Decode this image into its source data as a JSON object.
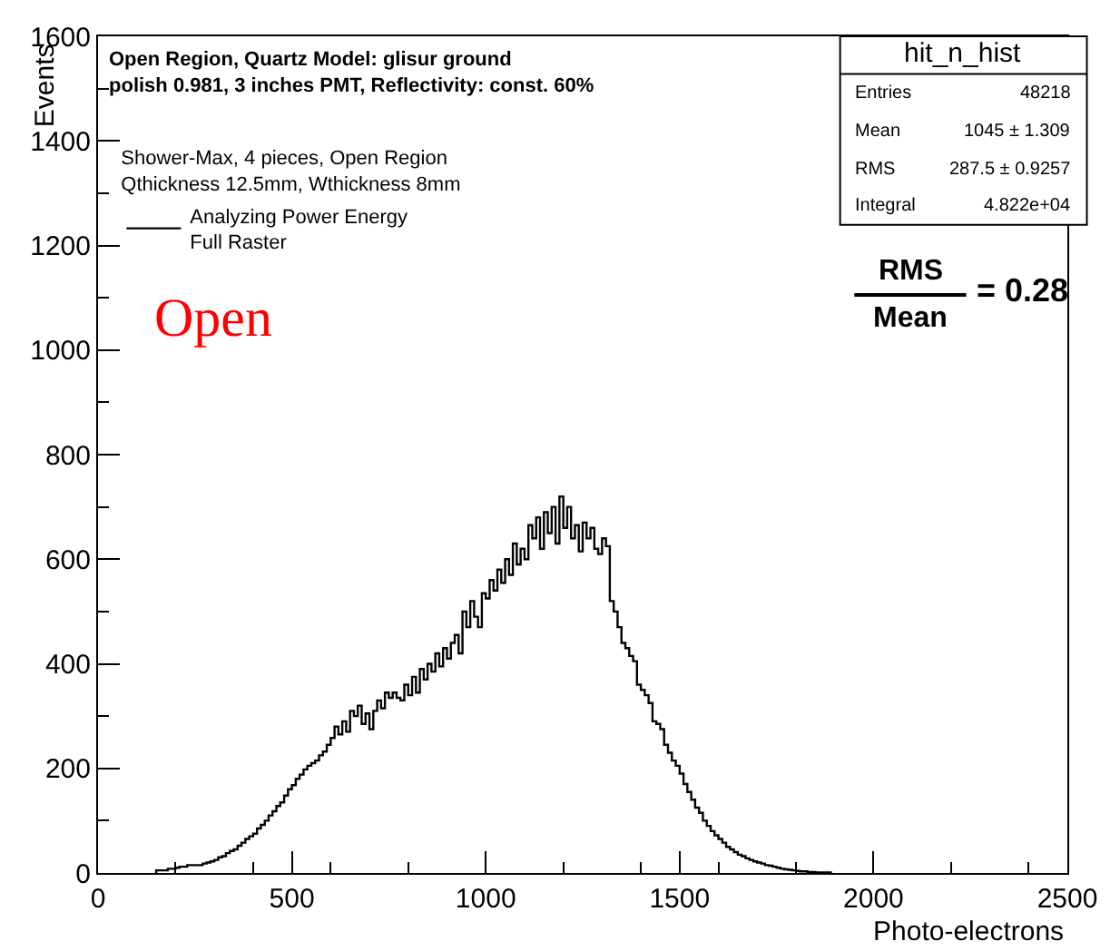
{
  "chart_data": {
    "type": "histogram",
    "title": "Open Region, Quartz Model: glisur ground\npolish 0.981, 3 inches PMT, Reflectivity: const. 60%",
    "legend_title": "Shower-Max, 4 pieces, Open Region\nQthickness 12.5mm, Wthickness 8mm",
    "xlabel": "Photo-electrons",
    "ylabel": "Events",
    "bins": [
      150,
      160,
      170,
      180,
      190,
      200,
      210,
      220,
      230,
      240,
      250,
      260,
      270,
      280,
      290,
      300,
      310,
      320,
      330,
      340,
      350,
      360,
      370,
      380,
      390,
      400,
      410,
      420,
      430,
      440,
      450,
      460,
      470,
      480,
      490,
      500,
      510,
      520,
      530,
      540,
      550,
      560,
      570,
      580,
      590,
      600,
      610,
      620,
      630,
      640,
      650,
      660,
      670,
      680,
      690,
      700,
      710,
      720,
      730,
      740,
      750,
      760,
      770,
      780,
      790,
      800,
      810,
      820,
      830,
      840,
      850,
      860,
      870,
      880,
      890,
      900,
      910,
      920,
      930,
      940,
      950,
      960,
      970,
      980,
      990,
      1000,
      1010,
      1020,
      1030,
      1040,
      1050,
      1060,
      1070,
      1080,
      1090,
      1100,
      1110,
      1120,
      1130,
      1140,
      1150,
      1160,
      1170,
      1180,
      1190,
      1200,
      1210,
      1220,
      1230,
      1240,
      1250,
      1260,
      1270,
      1280,
      1290,
      1300,
      1310,
      1320,
      1330,
      1340,
      1350,
      1360,
      1370,
      1380,
      1390,
      1400,
      1410,
      1420,
      1430,
      1440,
      1450,
      1460,
      1470,
      1480,
      1490,
      1500,
      1510,
      1520,
      1530,
      1540,
      1550,
      1560,
      1570,
      1580,
      1590,
      1600,
      1610,
      1620,
      1630,
      1640,
      1650,
      1660,
      1670,
      1680,
      1690,
      1700,
      1710,
      1720,
      1730,
      1740,
      1750,
      1760,
      1770,
      1780,
      1790,
      1800,
      1810,
      1820,
      1830,
      1840,
      1850,
      1860,
      1870,
      1880,
      1890
    ],
    "series": [
      {
        "name": "Analyzing Power Energy\nFull Raster",
        "color": "#000000",
        "values": [
          5,
          5,
          5,
          8,
          8,
          10,
          12,
          12,
          15,
          15,
          15,
          15,
          18,
          20,
          22,
          25,
          30,
          32,
          38,
          42,
          45,
          52,
          58,
          65,
          70,
          75,
          85,
          92,
          100,
          110,
          118,
          128,
          135,
          148,
          160,
          168,
          180,
          188,
          198,
          205,
          210,
          215,
          225,
          232,
          245,
          258,
          280,
          265,
          290,
          270,
          310,
          300,
          320,
          285,
          305,
          275,
          310,
          330,
          315,
          345,
          335,
          345,
          335,
          330,
          360,
          340,
          375,
          345,
          390,
          370,
          400,
          385,
          420,
          395,
          430,
          410,
          440,
          455,
          420,
          500,
          470,
          520,
          490,
          470,
          535,
          525,
          560,
          540,
          580,
          555,
          600,
          570,
          630,
          590,
          620,
          600,
          665,
          640,
          680,
          620,
          690,
          650,
          700,
          630,
          720,
          660,
          700,
          640,
          665,
          615,
          670,
          640,
          660,
          620,
          610,
          640,
          625,
          520,
          500,
          470,
          440,
          430,
          415,
          405,
          360,
          350,
          340,
          325,
          290,
          285,
          275,
          245,
          230,
          215,
          205,
          190,
          170,
          155,
          140,
          125,
          115,
          100,
          90,
          80,
          72,
          65,
          58,
          50,
          45,
          40,
          35,
          32,
          28,
          25,
          22,
          20,
          18,
          15,
          14,
          12,
          10,
          8,
          7,
          6,
          5,
          4,
          3,
          3,
          2,
          2,
          1,
          1,
          1,
          1
        ]
      }
    ],
    "xlim": [
      0,
      2500
    ],
    "xticks": [
      0,
      500,
      1000,
      1500,
      2000,
      2500
    ],
    "ylim": [
      0,
      1600
    ],
    "yticks": [
      0,
      200,
      400,
      600,
      800,
      1000,
      1200,
      1400,
      1600
    ],
    "legend": "top left",
    "annotations": [
      "Open",
      "hit_n_hist",
      "Entries",
      "48218",
      "Mean",
      "1045 ± 1.309",
      "RMS",
      "287.5 ± 0.9257",
      "Integral",
      "4.822e+04",
      "RMS",
      "Mean",
      "= 0.28"
    ]
  }
}
